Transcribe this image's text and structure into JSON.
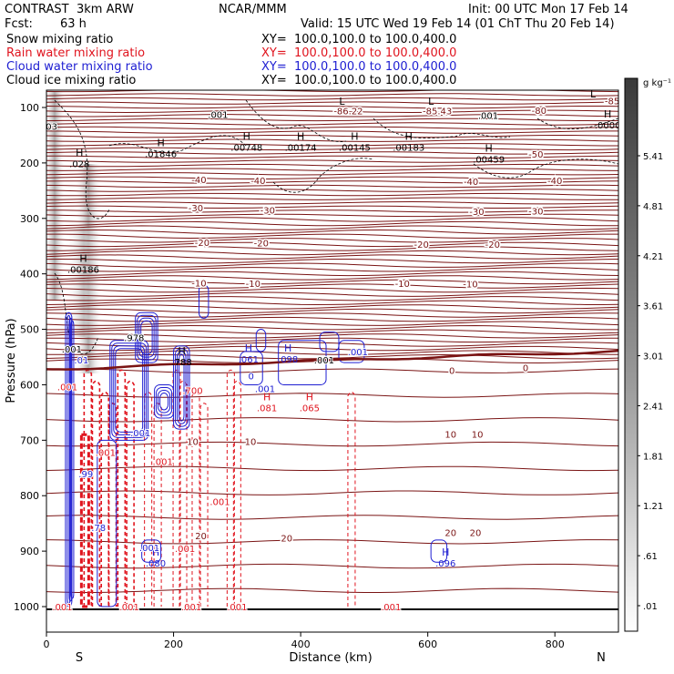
{
  "header": {
    "model": "CONTRAST",
    "run": "3km ARW",
    "org": "NCAR/MMM",
    "init": "Init: 00 UTC Mon 17 Feb 14",
    "fcst_label": "Fcst:",
    "fcst_value": "63 h",
    "valid": "Valid: 15 UTC Wed 19 Feb 14 (01 ChT Thu 20 Feb 14)"
  },
  "fields": [
    {
      "label": "Snow mixing ratio",
      "xy": "",
      "color": "#000000"
    },
    {
      "label": "Rain water mixing ratio",
      "xy": "XY=  100.0,100.0 to 100.0,400.0",
      "color": "#e0141e"
    },
    {
      "label": "Cloud water mixing ratio",
      "xy": "XY=  100.0,100.0 to 100.0,400.0",
      "color": "#1e1ed2"
    },
    {
      "label": "Cloud ice mixing ratio",
      "xy": "XY=  100.0,100.0 to 100.0,400.0",
      "color": "#000000"
    }
  ],
  "snow_xy": "XY=  100.0,100.0 to 100.0,400.0",
  "colors": {
    "temperature": "#7a1414",
    "rain": "#e0141e",
    "cloud_water": "#1e1ed2",
    "cloud_ice": "#000000"
  },
  "chart_data": {
    "type": "contour",
    "title": "Vertical cross section: Snow, rain water, cloud water and cloud ice mixing ratio",
    "xlabel": "Distance (km)",
    "ylabel": "Pressure (hPa)",
    "xlim": [
      0,
      900
    ],
    "ylim": [
      1000,
      50
    ],
    "x_ticks": [
      0,
      200,
      400,
      600,
      800
    ],
    "y_ticks": [
      100,
      200,
      300,
      400,
      500,
      600,
      700,
      800,
      900,
      1000
    ],
    "endpoint_left": "S",
    "endpoint_right": "N",
    "colorbar": {
      "unit": "g kg⁻¹",
      "levels": [
        "5.41",
        "4.81",
        "4.21",
        "3.61",
        "3.01",
        "2.41",
        "1.81",
        "1.21",
        ".61",
        ".01"
      ]
    },
    "isotherms": [
      {
        "label": "-80",
        "p": 102
      },
      {
        "label": "-70",
        "p": 118
      },
      {
        "label": "-60",
        "p": 132
      },
      {
        "label": "-50",
        "p": 180
      },
      {
        "label": "-40",
        "p": 222
      },
      {
        "label": "-30",
        "p": 254
      },
      {
        "label": "-20",
        "p": 302
      },
      {
        "label": "-10",
        "p": 355
      },
      {
        "label": "0",
        "p": 512
      },
      {
        "label": "10",
        "p": 657
      },
      {
        "label": "20",
        "p": 830
      }
    ],
    "temp_labels": [
      {
        "text": "-64.74",
        "x": 25,
        "p": 58
      },
      {
        "text": "-80",
        "x": 200,
        "p": 62
      },
      {
        "text": "-69.71",
        "x": 250,
        "p": 58
      },
      {
        "text": "-68.56",
        "x": 355,
        "p": 58
      },
      {
        "text": "-86.22",
        "x": 475,
        "p": 106
      },
      {
        "text": "-85.43",
        "x": 615,
        "p": 106
      },
      {
        "text": "-85",
        "x": 890,
        "p": 88
      },
      {
        "text": "-80",
        "x": 775,
        "p": 105
      },
      {
        "text": "-50",
        "x": 770,
        "p": 184
      },
      {
        "text": "-40",
        "x": 240,
        "p": 230
      },
      {
        "text": "-40",
        "x": 333,
        "p": 231
      },
      {
        "text": "-40",
        "x": 668,
        "p": 233
      },
      {
        "text": "-40",
        "x": 800,
        "p": 231
      },
      {
        "text": "-30",
        "x": 235,
        "p": 281
      },
      {
        "text": "-30",
        "x": 348,
        "p": 285
      },
      {
        "text": "-30",
        "x": 677,
        "p": 287
      },
      {
        "text": "-30",
        "x": 770,
        "p": 286
      },
      {
        "text": "-20",
        "x": 245,
        "p": 343
      },
      {
        "text": "-20",
        "x": 338,
        "p": 344
      },
      {
        "text": "-20",
        "x": 590,
        "p": 346
      },
      {
        "text": "-20",
        "x": 702,
        "p": 346
      },
      {
        "text": "-10",
        "x": 240,
        "p": 416
      },
      {
        "text": "-10",
        "x": 325,
        "p": 417
      },
      {
        "text": "-10",
        "x": 560,
        "p": 417
      },
      {
        "text": "-10",
        "x": 667,
        "p": 418
      },
      {
        "text": "0",
        "x": 638,
        "p": 574
      },
      {
        "text": "0",
        "x": 754,
        "p": 569
      },
      {
        "text": "10",
        "x": 230,
        "p": 702
      },
      {
        "text": "10",
        "x": 321,
        "p": 702
      },
      {
        "text": "10",
        "x": 636,
        "p": 689
      },
      {
        "text": "10",
        "x": 678,
        "p": 689
      },
      {
        "text": "20",
        "x": 243,
        "p": 872
      },
      {
        "text": "20",
        "x": 378,
        "p": 876
      },
      {
        "text": "20",
        "x": 636,
        "p": 866
      },
      {
        "text": "20",
        "x": 675,
        "p": 866
      }
    ],
    "extrema": [
      {
        "kind": "L",
        "value": "",
        "x": 465,
        "p": 95,
        "color": "black"
      },
      {
        "kind": "L",
        "value": "",
        "x": 605,
        "p": 95,
        "color": "black"
      },
      {
        "kind": "L",
        "value": "",
        "x": 860,
        "p": 82,
        "color": "black"
      },
      {
        "kind": "H",
        "value": ".01846",
        "x": 180,
        "p": 170,
        "color": "black"
      },
      {
        "kind": "H",
        "value": ".00748",
        "x": 315,
        "p": 158,
        "color": "black"
      },
      {
        "kind": "H",
        "value": ".00174",
        "x": 400,
        "p": 158,
        "color": "black"
      },
      {
        "kind": "H",
        "value": ".00145",
        "x": 485,
        "p": 158,
        "color": "black"
      },
      {
        "kind": "H",
        "value": ".00183",
        "x": 570,
        "p": 158,
        "color": "black"
      },
      {
        "kind": "H",
        "value": ".00459",
        "x": 696,
        "p": 180,
        "color": "black"
      },
      {
        "kind": "H",
        "value": ".0000",
        "x": 883,
        "p": 118,
        "color": "black"
      },
      {
        "kind": "H",
        "value": ".028",
        "x": 52,
        "p": 188,
        "color": "black"
      },
      {
        "kind": "H",
        "value": ".00186",
        "x": 58,
        "p": 378,
        "color": "black"
      },
      {
        "kind": "H",
        "value": ".061",
        "x": 318,
        "p": 540,
        "color": "blue"
      },
      {
        "kind": "H",
        "value": ".098",
        "x": 380,
        "p": 540,
        "color": "blue"
      },
      {
        "kind": "H",
        "value": ".788",
        "x": 213,
        "p": 545,
        "color": "black"
      },
      {
        "kind": "H",
        "value": ".080",
        "x": 172,
        "p": 908,
        "color": "blue"
      },
      {
        "kind": "H",
        "value": ".096",
        "x": 628,
        "p": 908,
        "color": "blue"
      },
      {
        "kind": "H",
        "value": ".081",
        "x": 347,
        "p": 628,
        "color": "red"
      },
      {
        "kind": "H",
        "value": ".065",
        "x": 414,
        "p": 628,
        "color": "red"
      }
    ],
    "contour_labels": [
      {
        "text": ".001",
        "x": 270,
        "p": 112,
        "color": "black"
      },
      {
        "text": ".001",
        "x": 695,
        "p": 114,
        "color": "black"
      },
      {
        "text": ".001",
        "x": 437,
        "p": 555,
        "color": "black"
      },
      {
        "text": ".001",
        "x": 344,
        "p": 607,
        "color": "blue"
      },
      {
        "text": "0",
        "x": 322,
        "p": 584,
        "color": "blue"
      },
      {
        "text": ".978",
        "x": 138,
        "p": 515,
        "color": "black"
      },
      {
        "text": ".01",
        "x": 55,
        "p": 555,
        "color": "blue"
      },
      {
        "text": ".001",
        "x": 33,
        "p": 603,
        "color": "red"
      },
      {
        "text": ".001",
        "x": 148,
        "p": 686,
        "color": "blue"
      },
      {
        "text": ".001",
        "x": 183,
        "p": 738,
        "color": "red"
      },
      {
        "text": ".001",
        "x": 93,
        "p": 722,
        "color": "red"
      },
      {
        "text": ".001",
        "x": 273,
        "p": 810,
        "color": "red"
      },
      {
        "text": ".001",
        "x": 162,
        "p": 893,
        "color": "blue"
      },
      {
        "text": ".001",
        "x": 218,
        "p": 895,
        "color": "red"
      },
      {
        "text": ".001",
        "x": 130,
        "p": 1000,
        "color": "red"
      },
      {
        "text": ".001",
        "x": 228,
        "p": 1000,
        "color": "red"
      },
      {
        "text": ".001",
        "x": 300,
        "p": 1000,
        "color": "red"
      },
      {
        "text": ".001",
        "x": 542,
        "p": 1000,
        "color": "red"
      },
      {
        "text": ".001",
        "x": 25,
        "p": 1000,
        "color": "red"
      },
      {
        "text": ".99",
        "x": 62,
        "p": 760,
        "color": "blue"
      },
      {
        "text": ".78",
        "x": 82,
        "p": 857,
        "color": "blue"
      },
      {
        "text": ".700",
        "x": 230,
        "p": 610,
        "color": "red"
      },
      {
        "text": ".001",
        "x": 490,
        "p": 540,
        "color": "blue"
      },
      {
        "text": ".001",
        "x": 40,
        "p": 535,
        "color": "black"
      },
      {
        "text": "03",
        "x": 8,
        "p": 134,
        "color": "black"
      }
    ]
  }
}
